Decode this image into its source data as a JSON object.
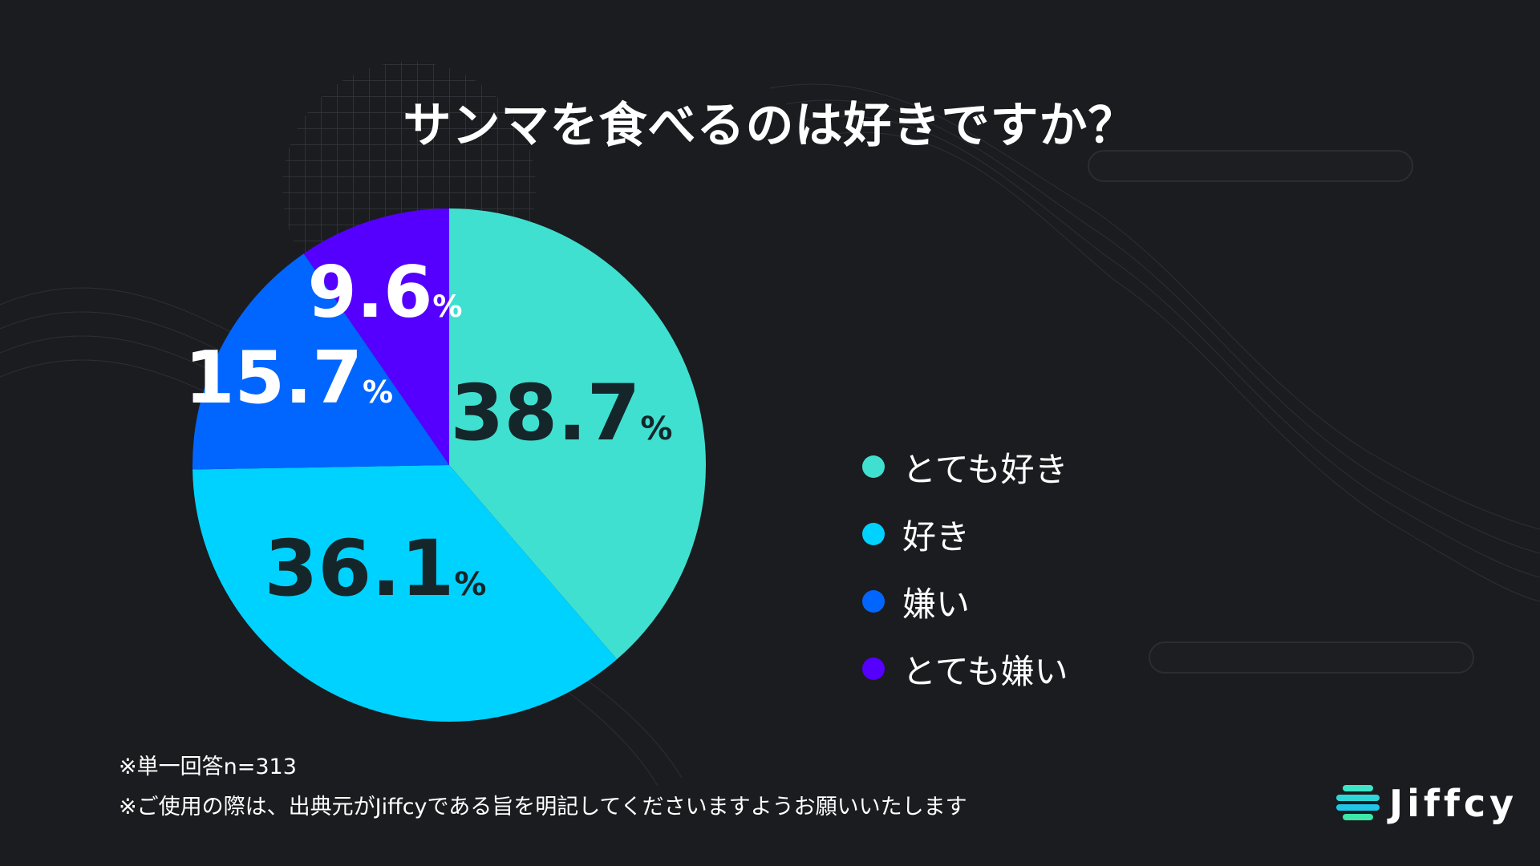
{
  "title": "サンマを食べるのは好きですか？",
  "chart_data": {
    "type": "pie",
    "title": "サンマを食べるのは好きですか？",
    "unit": "%",
    "slices": [
      {
        "label": "とても好き",
        "value": 38.7,
        "color": "#40e0d0",
        "text_color": "#15262a"
      },
      {
        "label": "好き",
        "value": 36.1,
        "color": "#00d2ff",
        "text_color": "#15262a"
      },
      {
        "label": "嫌い",
        "value": 15.7,
        "color": "#0066ff",
        "text_color": "#ffffff"
      },
      {
        "label": "とても嫌い",
        "value": 9.6,
        "color": "#5500ff",
        "text_color": "#ffffff"
      }
    ],
    "start_angle": "12 o'clock",
    "direction": "clockwise"
  },
  "notes": [
    "※単一回答n=313",
    "※ご使用の際は、出典元がJiffcyである旨を明記してくださいますようお願いいたします"
  ],
  "logo": {
    "text": "Jiffcy",
    "icon": "jiffcy-logo-icon"
  },
  "colors": {
    "background": "#1b1c1f"
  }
}
